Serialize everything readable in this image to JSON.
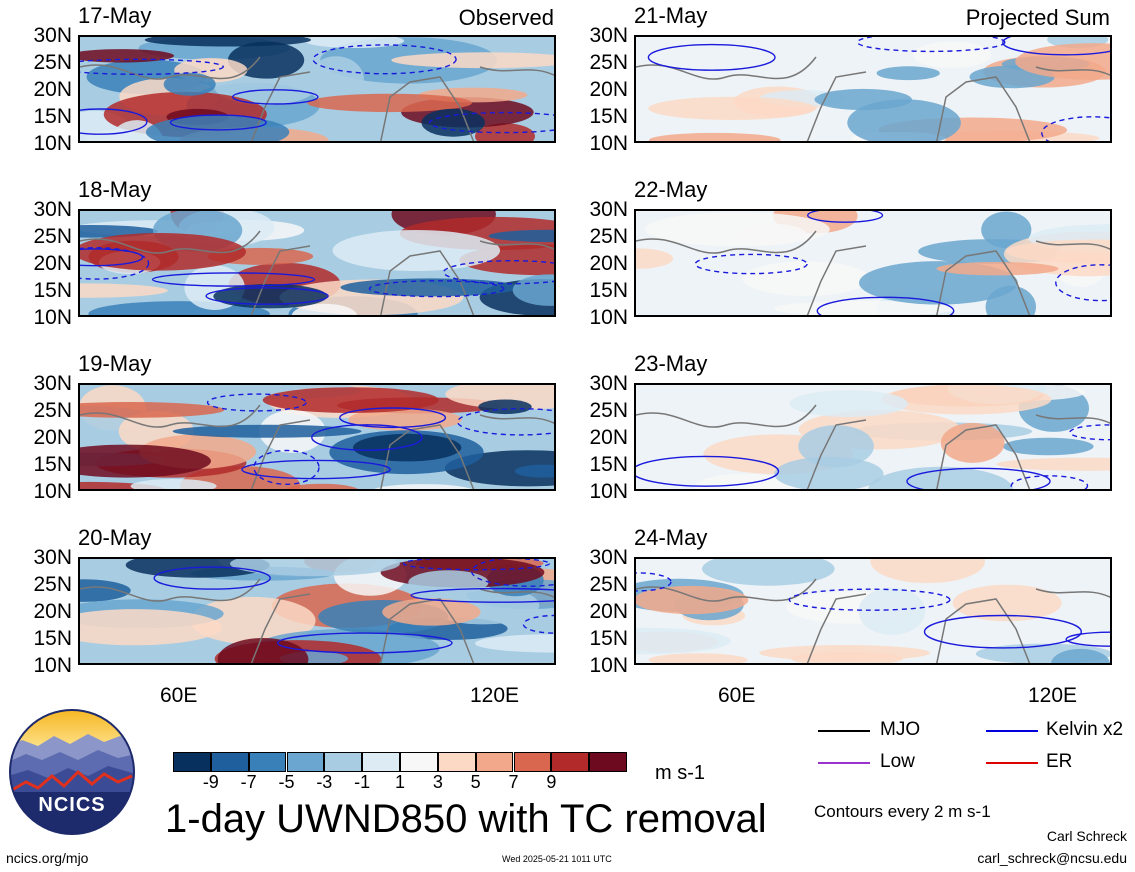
{
  "panels": [
    {
      "date": "17-May",
      "tag": "Observed",
      "col": 0,
      "row": 0,
      "group": "observed"
    },
    {
      "date": "18-May",
      "tag": "",
      "col": 0,
      "row": 1,
      "group": "observed"
    },
    {
      "date": "19-May",
      "tag": "",
      "col": 0,
      "row": 2,
      "group": "observed"
    },
    {
      "date": "20-May",
      "tag": "",
      "col": 0,
      "row": 3,
      "group": "observed"
    },
    {
      "date": "21-May",
      "tag": "Projected Sum",
      "col": 1,
      "row": 0,
      "group": "projected"
    },
    {
      "date": "22-May",
      "tag": "",
      "col": 1,
      "row": 1,
      "group": "projected"
    },
    {
      "date": "23-May",
      "tag": "",
      "col": 1,
      "row": 2,
      "group": "projected"
    },
    {
      "date": "24-May",
      "tag": "",
      "col": 1,
      "row": 3,
      "group": "projected"
    }
  ],
  "lat_ticks": [
    "30N",
    "25N",
    "20N",
    "15N",
    "10N"
  ],
  "lon_ticks": [
    "60E",
    "120E"
  ],
  "colorbar": {
    "labels": [
      "-9",
      "-7",
      "-5",
      "-3",
      "-1",
      "1",
      "3",
      "5",
      "7",
      "9"
    ],
    "colors": [
      "#08305e",
      "#1f5f9e",
      "#3a80b8",
      "#6aa6cf",
      "#a8cde3",
      "#dcebf4",
      "#f7f7f7",
      "#fbd9c5",
      "#f2a98b",
      "#d9674f",
      "#b22a2a",
      "#6e0a1f"
    ],
    "units": "m s-1"
  },
  "title": "1-day UWND850 with TC removal",
  "legend": {
    "items": [
      {
        "label": "MJO",
        "color": "#000000"
      },
      {
        "label": "Kelvin x2",
        "color": "#0000dd"
      },
      {
        "label": "Low",
        "color": "#9933cc"
      },
      {
        "label": "ER",
        "color": "#dd0000"
      }
    ],
    "contour_note": "Contours every 2 m s-1"
  },
  "logo": {
    "text": "NCICS"
  },
  "footer": {
    "url": "ncics.org/mjo",
    "timestamp": "Wed 2025-05-21 1011 UTC",
    "author": "Carl Schreck",
    "email": "carl_schreck@ncsu.edu"
  },
  "chart_data": {
    "type": "heatmap",
    "variable": "UWND850 anomaly",
    "units": "m s-1",
    "y_range": [
      10,
      30
    ],
    "y_ticks": [
      "30N",
      "25N",
      "20N",
      "15N",
      "10N"
    ],
    "x_ticks": [
      "60E",
      "120E"
    ],
    "levels": [
      -9,
      -7,
      -5,
      -3,
      -1,
      1,
      3,
      5,
      7,
      9
    ],
    "panels": [
      "17-May",
      "18-May",
      "19-May",
      "20-May",
      "21-May",
      "22-May",
      "23-May",
      "24-May"
    ],
    "contour_interval": 2
  }
}
